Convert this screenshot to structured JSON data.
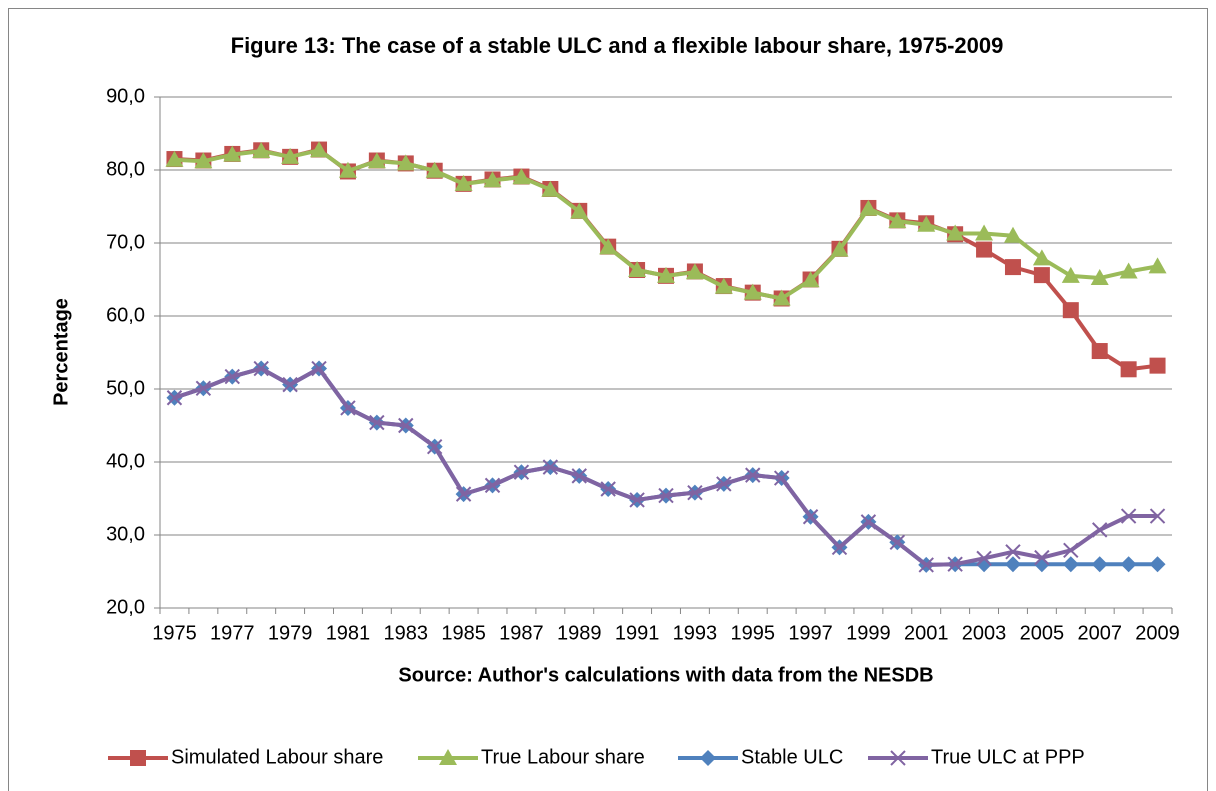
{
  "chart_data": {
    "type": "line",
    "title": "Figure 13: The case of a stable ULC and a flexible labour share, 1975-2009",
    "y_label": "Percentage",
    "x_label": "Source: Author's calculations with data from the NESDB",
    "categories": [
      "1975",
      null,
      "1977",
      null,
      "1979",
      null,
      "1981",
      null,
      "1983",
      null,
      "1985",
      null,
      "1987",
      null,
      "1989",
      null,
      "1991",
      null,
      "1993",
      null,
      "1995",
      null,
      "1997",
      null,
      "1999",
      null,
      "2001",
      null,
      "2003",
      null,
      "2005",
      null,
      "2007",
      null,
      "2009"
    ],
    "ylim": [
      20,
      90
    ],
    "yticks": [
      {
        "value": 20,
        "label": "20,0"
      },
      {
        "value": 30,
        "label": "30,0"
      },
      {
        "value": 40,
        "label": "40,0"
      },
      {
        "value": 50,
        "label": "50,0"
      },
      {
        "value": 60,
        "label": "60,0"
      },
      {
        "value": 70,
        "label": "70,0"
      },
      {
        "value": 80,
        "label": "80,0"
      },
      {
        "value": 90,
        "label": "90,0"
      }
    ],
    "grid": true,
    "legend": "bottom",
    "series": [
      {
        "name": "Simulated Labour share",
        "color": "#c0504d",
        "marker": "square",
        "values": [
          81.5,
          81.3,
          82.2,
          82.7,
          81.8,
          82.8,
          79.8,
          81.3,
          80.9,
          79.9,
          78.1,
          78.7,
          79.1,
          77.4,
          74.4,
          69.5,
          66.3,
          65.5,
          66.1,
          64.1,
          63.2,
          62.4,
          65.0,
          69.2,
          74.8,
          73.1,
          72.7,
          71.2,
          69.1,
          66.7,
          65.6,
          60.8,
          55.2,
          52.7,
          53.2
        ]
      },
      {
        "name": "True Labour share",
        "color": "#9bbb59",
        "marker": "triangle",
        "values": [
          81.4,
          81.2,
          82.1,
          82.6,
          81.8,
          82.7,
          79.9,
          81.2,
          80.9,
          79.9,
          78.1,
          78.6,
          79.0,
          77.3,
          74.3,
          69.4,
          66.3,
          65.5,
          66.0,
          64.0,
          63.2,
          62.4,
          64.9,
          69.1,
          74.7,
          73.0,
          72.5,
          71.3,
          71.3,
          71.0,
          67.9,
          65.5,
          65.2,
          66.1,
          66.8
        ]
      },
      {
        "name": "Stable ULC",
        "color": "#4f81bd",
        "marker": "diamond",
        "values": [
          48.8,
          50.1,
          51.7,
          52.8,
          50.6,
          52.8,
          47.4,
          45.4,
          45.0,
          42.1,
          35.6,
          36.8,
          38.6,
          39.3,
          38.1,
          36.3,
          34.8,
          35.4,
          35.8,
          37.0,
          38.2,
          37.8,
          32.5,
          28.3,
          31.8,
          29.0,
          25.9,
          26.0,
          26.0,
          26.0,
          26.0,
          26.0,
          26.0,
          26.0,
          26.0
        ]
      },
      {
        "name": "True ULC at PPP",
        "color": "#8064a2",
        "marker": "x",
        "values": [
          48.8,
          50.1,
          51.7,
          52.8,
          50.6,
          52.8,
          47.4,
          45.4,
          45.0,
          42.1,
          35.6,
          36.8,
          38.6,
          39.3,
          38.1,
          36.3,
          34.8,
          35.4,
          35.8,
          37.0,
          38.2,
          37.8,
          32.5,
          28.3,
          31.8,
          29.0,
          25.9,
          26.0,
          26.8,
          27.7,
          26.9,
          27.9,
          30.7,
          32.6,
          32.6
        ]
      }
    ]
  }
}
